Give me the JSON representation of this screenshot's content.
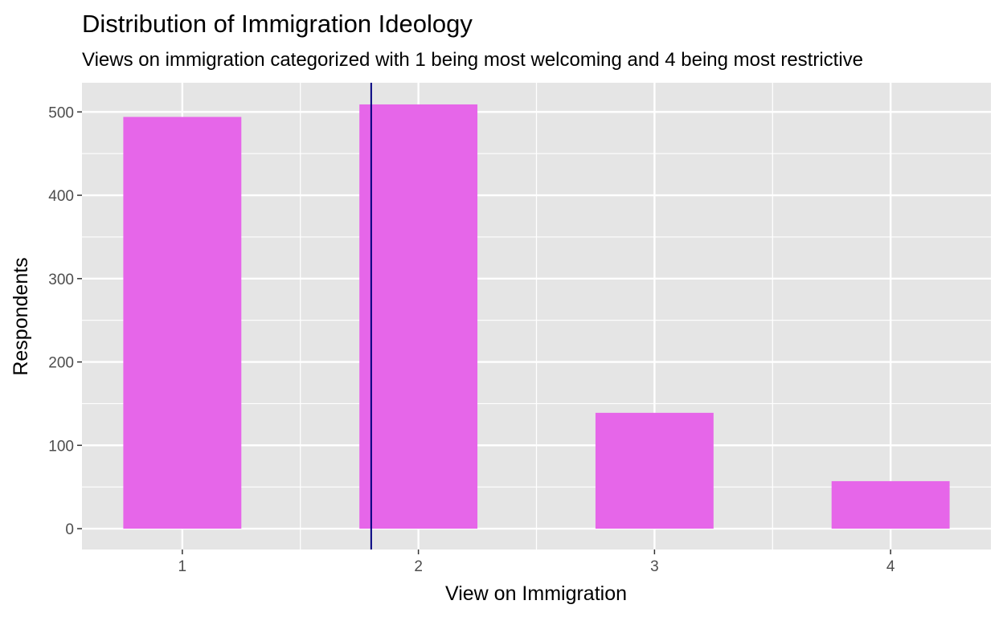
{
  "chart_data": {
    "type": "bar",
    "title": "Distribution of Immigration Ideology",
    "subtitle": "Views on immigration categorized with 1 being most welcoming and 4 being most restrictive",
    "xlabel": "View on Immigration",
    "ylabel": "Respondents",
    "categories": [
      "1",
      "2",
      "3",
      "4"
    ],
    "x": [
      1,
      2,
      3,
      4
    ],
    "values": [
      494,
      509,
      139,
      57
    ],
    "xlim": [
      0.575,
      4.425
    ],
    "ylim": [
      -25,
      535
    ],
    "yticks": [
      0,
      100,
      200,
      300,
      400,
      500
    ],
    "ytick_labels": [
      "0",
      "100",
      "200",
      "300",
      "400",
      "500"
    ],
    "grid": true,
    "vline": {
      "x": 1.8,
      "color": "#000080"
    },
    "colors": {
      "bar": "#e666e9",
      "panel": "#e5e5e5",
      "grid": "#ffffff",
      "vline": "#000080"
    }
  }
}
